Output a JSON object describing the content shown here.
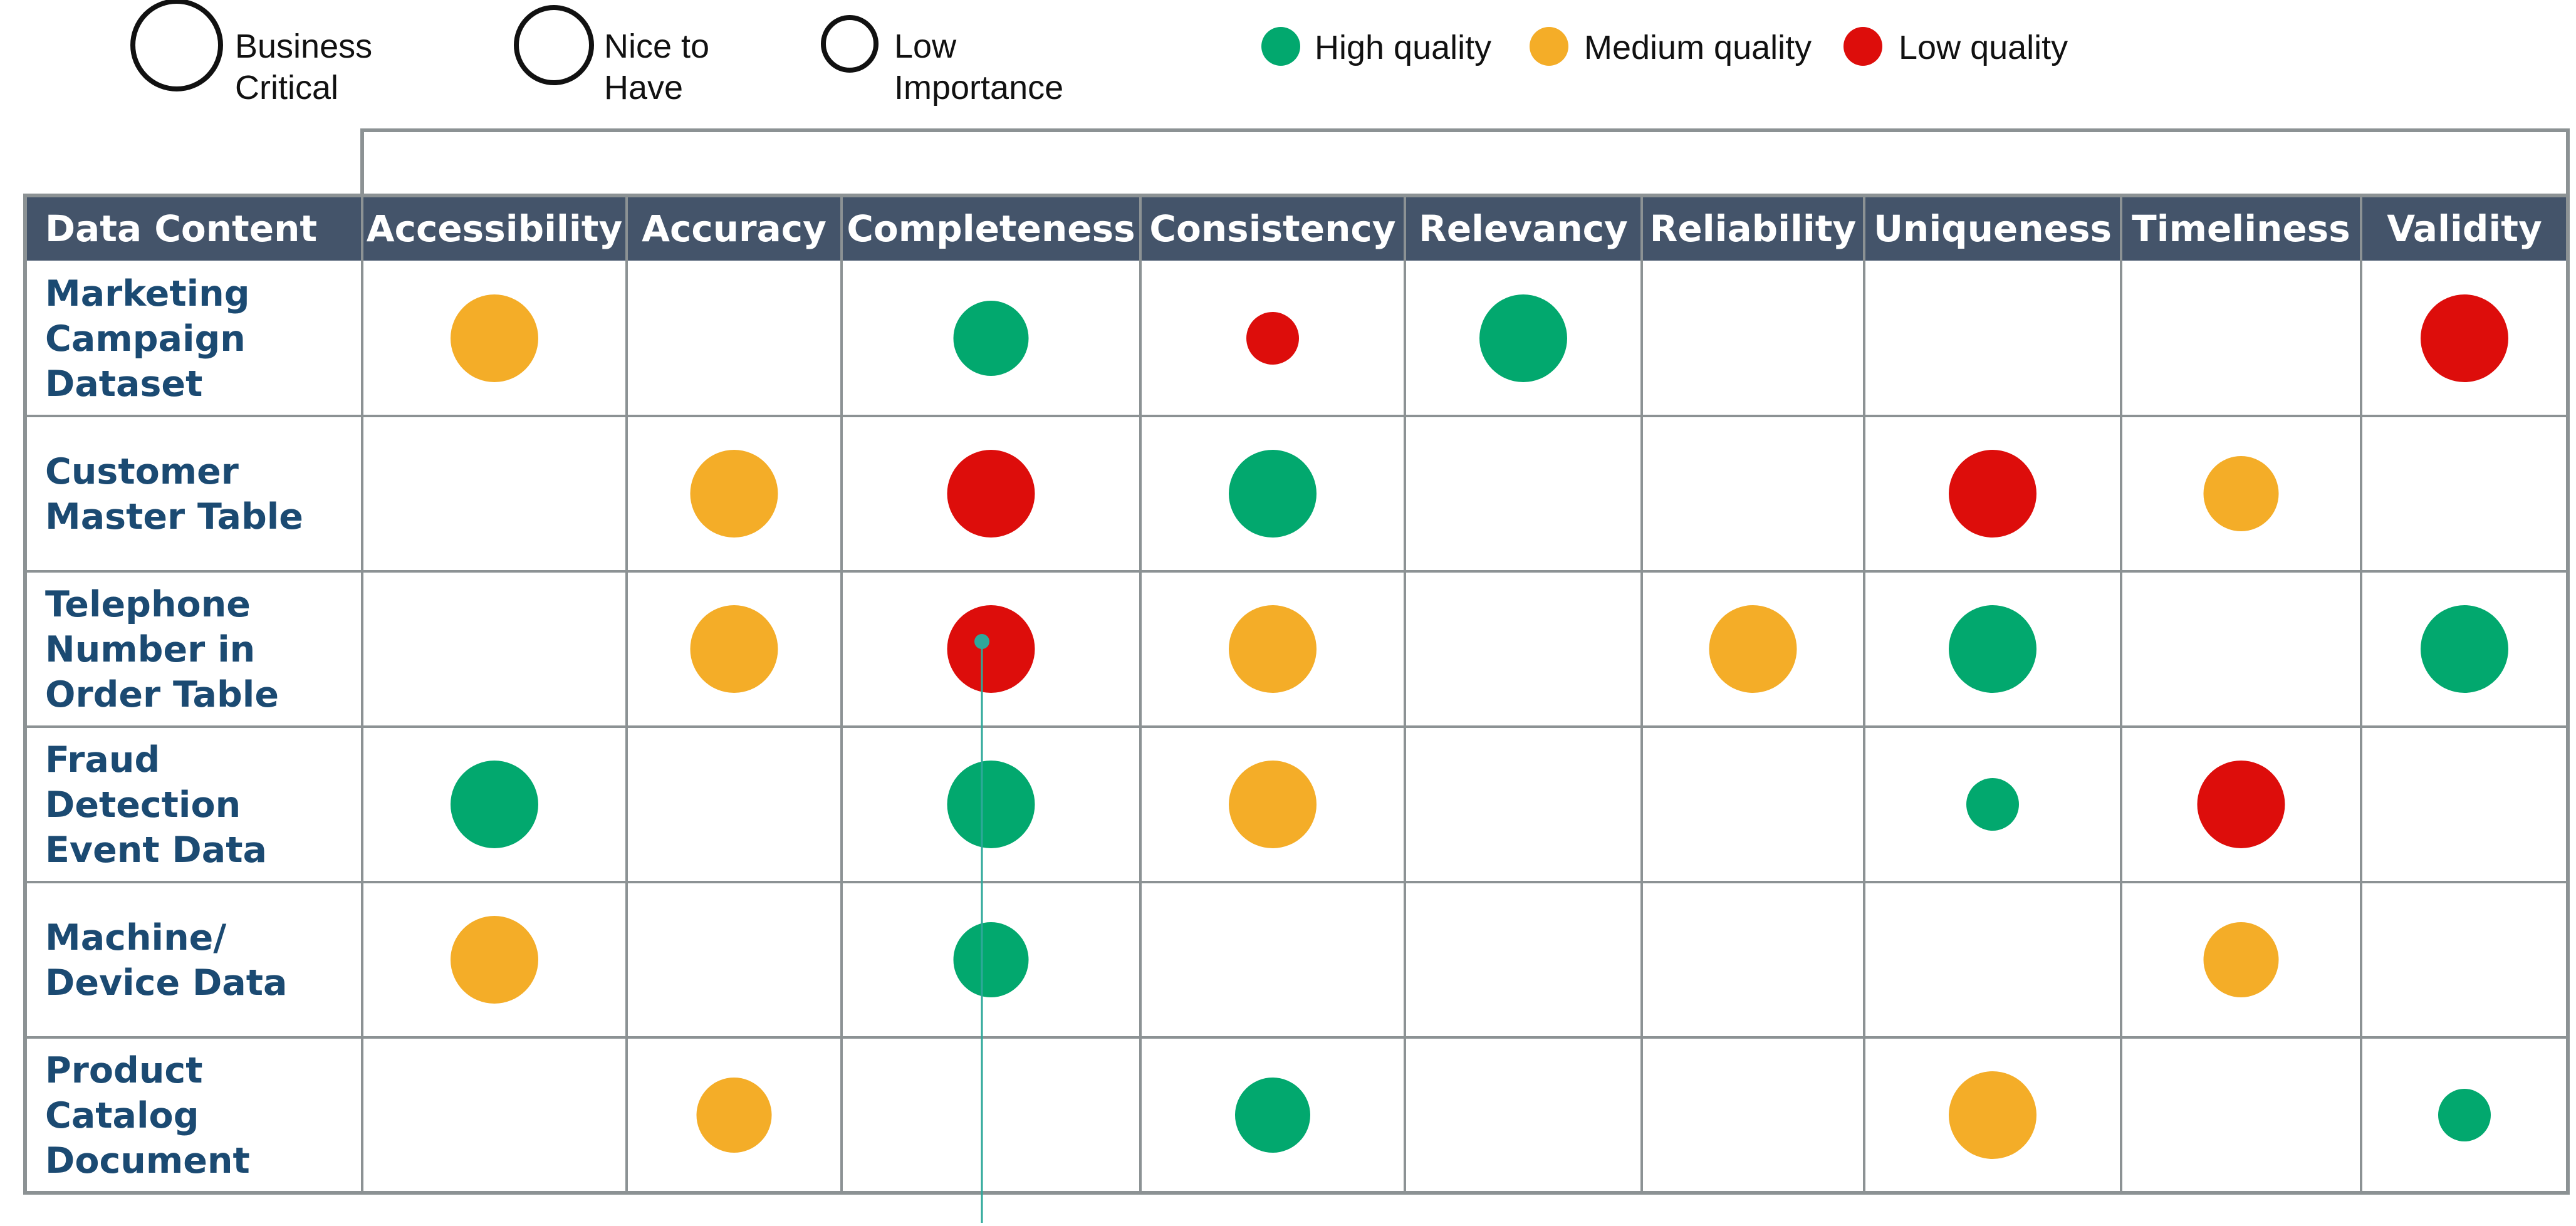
{
  "legend": {
    "importance": [
      {
        "id": "business-critical",
        "lines": [
          "Business",
          "Critical"
        ],
        "size": "large"
      },
      {
        "id": "nice-to-have",
        "lines": [
          "Nice to",
          "Have"
        ],
        "size": "medium"
      },
      {
        "id": "low-importance",
        "lines": [
          "Low",
          "Importance"
        ],
        "size": "small"
      }
    ],
    "quality": [
      {
        "id": "high-quality",
        "label": "High quality",
        "color": "#02a86e"
      },
      {
        "id": "medium-quality",
        "label": "Medium quality",
        "color": "#f4ad28"
      },
      {
        "id": "low-quality",
        "label": "Low quality",
        "color": "#dd0d0b"
      }
    ]
  },
  "colors": {
    "header_bg": "#44546a",
    "row_label": "#1b4a72",
    "grid": "#8c9294",
    "high": "#02a86e",
    "medium": "#f4ad28",
    "low": "#dd0d0b"
  },
  "table": {
    "corner_label": "Data Content",
    "columns": [
      "Accessibility",
      "Accuracy",
      "Completeness",
      "Consistency",
      "Relevancy",
      "Reliability",
      "Uniqueness",
      "Timeliness",
      "Validity"
    ],
    "rows": [
      {
        "lines": [
          "Marketing",
          "Campaign",
          "Dataset"
        ],
        "cells": [
          {
            "col": 0,
            "quality": "medium",
            "importance": "large"
          },
          {
            "col": 2,
            "quality": "high",
            "importance": "medium"
          },
          {
            "col": 3,
            "quality": "low",
            "importance": "small"
          },
          {
            "col": 4,
            "quality": "high",
            "importance": "large"
          },
          {
            "col": 8,
            "quality": "low",
            "importance": "large"
          }
        ]
      },
      {
        "lines": [
          "Customer",
          "Master Table"
        ],
        "cells": [
          {
            "col": 1,
            "quality": "medium",
            "importance": "large"
          },
          {
            "col": 2,
            "quality": "low",
            "importance": "large"
          },
          {
            "col": 3,
            "quality": "high",
            "importance": "large"
          },
          {
            "col": 6,
            "quality": "low",
            "importance": "large"
          },
          {
            "col": 7,
            "quality": "medium",
            "importance": "medium"
          }
        ]
      },
      {
        "lines": [
          "Telephone",
          "Number in",
          "Order Table"
        ],
        "cells": [
          {
            "col": 1,
            "quality": "medium",
            "importance": "large"
          },
          {
            "col": 2,
            "quality": "low",
            "importance": "large"
          },
          {
            "col": 3,
            "quality": "medium",
            "importance": "large"
          },
          {
            "col": 5,
            "quality": "medium",
            "importance": "large"
          },
          {
            "col": 6,
            "quality": "high",
            "importance": "large"
          },
          {
            "col": 8,
            "quality": "high",
            "importance": "large"
          }
        ]
      },
      {
        "lines": [
          "Fraud",
          "Detection",
          "Event Data"
        ],
        "cells": [
          {
            "col": 0,
            "quality": "high",
            "importance": "large"
          },
          {
            "col": 2,
            "quality": "high",
            "importance": "large"
          },
          {
            "col": 3,
            "quality": "medium",
            "importance": "large"
          },
          {
            "col": 6,
            "quality": "high",
            "importance": "small"
          },
          {
            "col": 7,
            "quality": "low",
            "importance": "large"
          }
        ]
      },
      {
        "lines": [
          "Machine/",
          "Device Data"
        ],
        "cells": [
          {
            "col": 0,
            "quality": "medium",
            "importance": "large"
          },
          {
            "col": 2,
            "quality": "high",
            "importance": "medium"
          },
          {
            "col": 7,
            "quality": "medium",
            "importance": "medium"
          }
        ]
      },
      {
        "lines": [
          "Product",
          "Catalog",
          "Document"
        ],
        "cells": [
          {
            "col": 1,
            "quality": "medium",
            "importance": "medium"
          },
          {
            "col": 3,
            "quality": "high",
            "importance": "medium"
          },
          {
            "col": 6,
            "quality": "medium",
            "importance": "large"
          },
          {
            "col": 8,
            "quality": "high",
            "importance": "small"
          }
        ]
      }
    ]
  }
}
